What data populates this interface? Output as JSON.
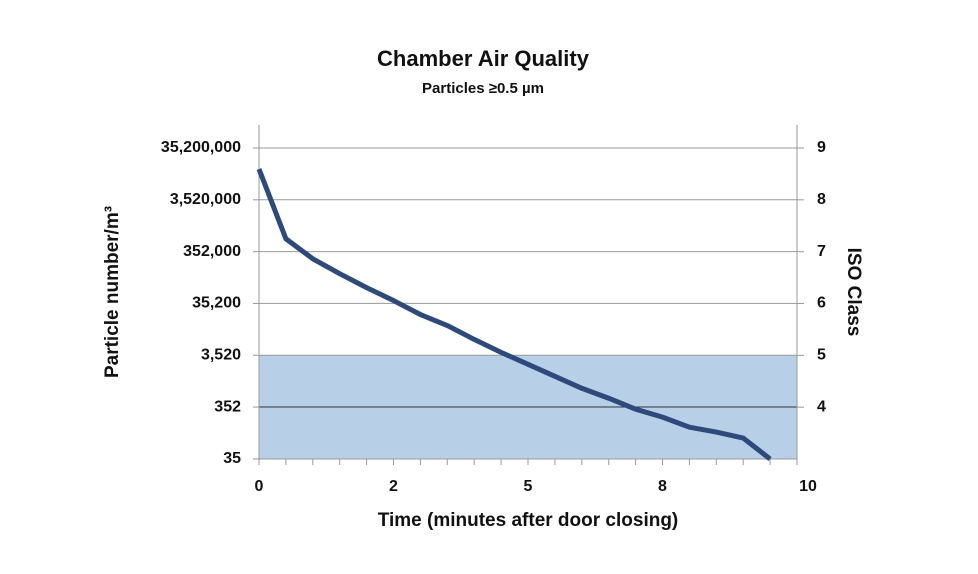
{
  "chart_data": {
    "type": "line",
    "title": "Chamber Air Quality",
    "subtitle": "Particles  ≥0.5 µm",
    "xlabel": "Time (minutes after door closing)",
    "ylabel": "Particle number/m³",
    "y2label": "ISO Class",
    "categories": [
      "0",
      null,
      null,
      null,
      null,
      "2",
      null,
      null,
      null,
      null,
      "5",
      null,
      null,
      null,
      null,
      "8",
      null,
      null,
      null,
      null,
      "10"
    ],
    "series": [
      {
        "name": "Particles",
        "color": "#2e4a7a",
        "values": [
          13800000,
          622000,
          256000,
          132000,
          71100,
          40000,
          21500,
          13200,
          7110,
          4000,
          2350,
          1380,
          811,
          521,
          321,
          225,
          144,
          116,
          88.7,
          35,
          null
        ]
      }
    ],
    "ylim": [
      35,
      35200000
    ],
    "log_y": true,
    "yticks": [
      35,
      352,
      {
        "value": 3520,
        "label": "3,520"
      },
      {
        "value": 35200,
        "label": "35,200"
      },
      {
        "value": 352000,
        "label": "352,000"
      },
      {
        "value": 3520000,
        "label": "3,520,000"
      },
      {
        "value": 35200000,
        "label": "35,200,000"
      }
    ],
    "y2lim": [
      3,
      9
    ],
    "y2ticks": [
      4,
      5,
      6,
      7,
      8,
      9
    ],
    "shaded_range": {
      "ylim": [
        35,
        3520
      ],
      "color": "#b8cfe8"
    },
    "grid": true
  }
}
